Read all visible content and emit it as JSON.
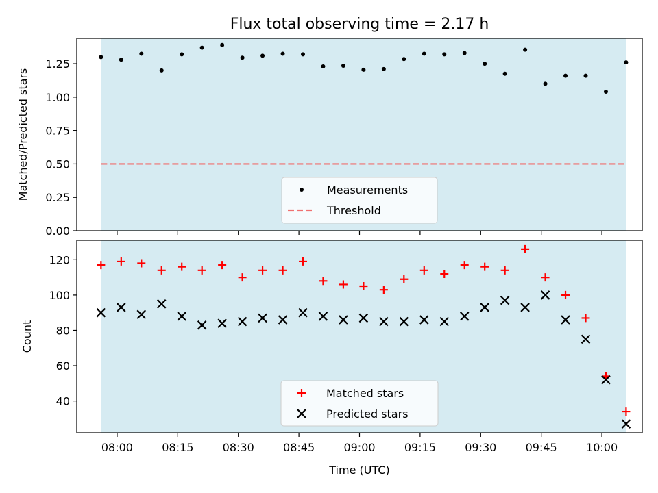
{
  "chart_data": [
    {
      "type": "scatter",
      "title": "Flux total observing time = 2.17 h",
      "xlabel": "",
      "ylabel": "Matched/Predicted stars",
      "ylim": [
        0.0,
        1.44
      ],
      "yticks": [
        "0.00",
        "0.25",
        "0.50",
        "0.75",
        "1.00",
        "1.25"
      ],
      "grid": false,
      "legend_position": "bottom-center",
      "shaded_span": [
        "07:56",
        "10:06"
      ],
      "shade_color": "#add8e6",
      "x": [
        "07:56",
        "08:01",
        "08:06",
        "08:11",
        "08:16",
        "08:21",
        "08:26",
        "08:31",
        "08:36",
        "08:41",
        "08:46",
        "08:51",
        "08:56",
        "09:01",
        "09:06",
        "09:11",
        "09:16",
        "09:21",
        "09:26",
        "09:31",
        "09:36",
        "09:41",
        "09:46",
        "09:51",
        "09:56",
        "10:01",
        "10:06"
      ],
      "series": [
        {
          "name": "Measurements",
          "marker": "dot",
          "color": "#000000",
          "values": [
            1.3,
            1.28,
            1.325,
            1.2,
            1.32,
            1.37,
            1.39,
            1.295,
            1.31,
            1.325,
            1.32,
            1.23,
            1.235,
            1.205,
            1.21,
            1.285,
            1.325,
            1.32,
            1.33,
            1.25,
            1.175,
            1.355,
            1.1,
            1.16,
            1.16,
            1.04,
            1.26
          ]
        }
      ],
      "threshold": {
        "name": "Threshold",
        "value": 0.5,
        "color": "#f07070"
      }
    },
    {
      "type": "scatter",
      "title": "",
      "xlabel": "Time (UTC)",
      "ylabel": "Count",
      "ylim": [
        22,
        131
      ],
      "yticks": [
        "40",
        "60",
        "80",
        "100",
        "120"
      ],
      "xticks": [
        "08:00",
        "08:15",
        "08:30",
        "08:45",
        "09:00",
        "09:15",
        "09:30",
        "09:45",
        "10:00"
      ],
      "xlim": [
        "07:50",
        "10:10"
      ],
      "grid": false,
      "legend_position": "bottom-center",
      "x": [
        "07:56",
        "08:01",
        "08:06",
        "08:11",
        "08:16",
        "08:21",
        "08:26",
        "08:31",
        "08:36",
        "08:41",
        "08:46",
        "08:51",
        "08:56",
        "09:01",
        "09:06",
        "09:11",
        "09:16",
        "09:21",
        "09:26",
        "09:31",
        "09:36",
        "09:41",
        "09:46",
        "09:51",
        "09:56",
        "10:01",
        "10:06"
      ],
      "series": [
        {
          "name": "Matched stars",
          "marker": "plus",
          "color": "#ff0000",
          "values": [
            117,
            119,
            118,
            114,
            116,
            114,
            117,
            110,
            114,
            114,
            119,
            108,
            106,
            105,
            103,
            109,
            114,
            112,
            117,
            116,
            114,
            126,
            110,
            100,
            87,
            54,
            34
          ]
        },
        {
          "name": "Predicted stars",
          "marker": "x",
          "color": "#000000",
          "values": [
            90,
            93,
            89,
            95,
            88,
            83,
            84,
            85,
            87,
            86,
            90,
            88,
            86,
            87,
            85,
            85,
            86,
            85,
            88,
            93,
            97,
            93,
            100,
            86,
            75,
            52,
            27
          ]
        }
      ]
    }
  ]
}
